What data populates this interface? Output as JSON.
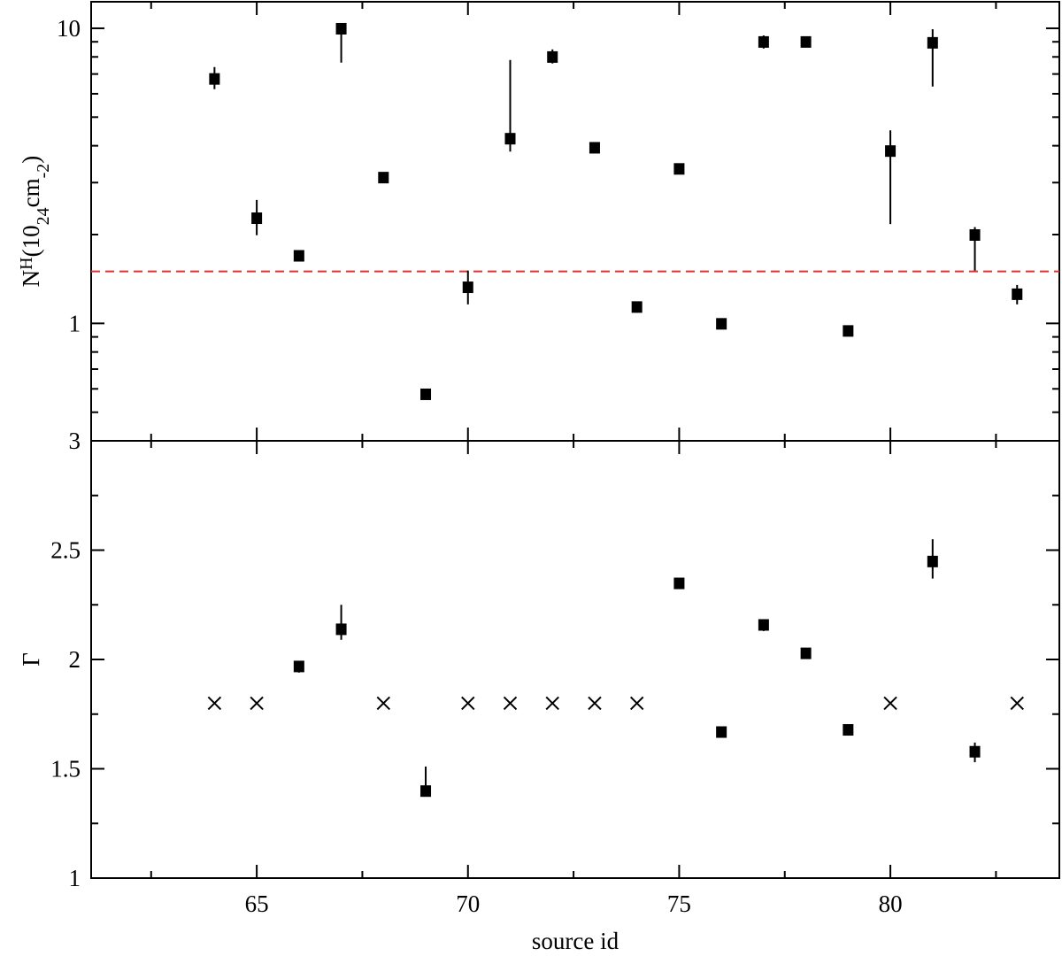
{
  "chart_data": [
    {
      "type": "scatter",
      "ylabel_parts": [
        "N",
        "H",
        "(10",
        "24",
        "cm",
        "-2",
        ")"
      ],
      "log_y": true,
      "ylim": [
        0.4,
        12.3
      ],
      "yticks": [
        1,
        10
      ],
      "yminor": [
        0.4,
        0.5,
        0.6,
        0.7,
        0.8,
        0.9,
        2,
        3,
        4,
        5,
        6,
        7,
        8,
        9
      ],
      "hline": 1.5,
      "hline_color": "#e03030",
      "series": [
        {
          "marker": "square",
          "color": "#000000",
          "x": [
            64,
            65,
            66,
            67,
            68,
            69,
            70,
            71,
            72,
            73,
            74,
            75,
            76,
            77,
            78,
            79,
            80,
            81,
            82,
            83
          ],
          "values": [
            6.76,
            2.28,
            1.7,
            10,
            3.13,
            0.577,
            1.33,
            4.24,
            8.02,
            3.95,
            1.14,
            3.35,
            1.0,
            9.02,
            9.02,
            0.946,
            3.85,
            8.96,
            2.0,
            1.26
          ],
          "err_low": [
            6.22,
            1.99,
            null,
            7.65,
            null,
            null,
            1.16,
            3.82,
            7.6,
            null,
            null,
            null,
            null,
            8.54,
            null,
            null,
            2.17,
            6.35,
            1.51,
            1.16
          ],
          "err_high": [
            7.39,
            2.62,
            null,
            null,
            null,
            null,
            1.51,
            7.81,
            8.48,
            null,
            null,
            null,
            null,
            9.46,
            null,
            null,
            4.51,
            9.93,
            2.12,
            1.35
          ]
        }
      ]
    },
    {
      "type": "scatter",
      "ylabel": "Γ",
      "xlabel": "source id",
      "xlim": [
        61.08,
        84.0
      ],
      "xticks": [
        65,
        70,
        75,
        80
      ],
      "xminor": [
        62.5,
        67.5,
        72.5,
        77.5,
        82.5
      ],
      "ylim": [
        1,
        3
      ],
      "yticks": [
        1,
        1.5,
        2,
        2.5,
        3
      ],
      "yminor": [
        1.25,
        1.75,
        2.25,
        2.75
      ],
      "series": [
        {
          "marker": "square",
          "color": "#000000",
          "x": [
            66,
            67,
            69,
            75,
            76,
            77,
            78,
            79,
            81,
            82
          ],
          "values": [
            1.97,
            2.14,
            1.4,
            2.35,
            1.67,
            2.16,
            2.03,
            1.68,
            2.45,
            1.58
          ],
          "err_low": [
            1.94,
            2.09,
            null,
            null,
            null,
            2.13,
            null,
            null,
            2.37,
            1.53
          ],
          "err_high": [
            null,
            2.25,
            1.51,
            null,
            null,
            2.18,
            null,
            null,
            2.55,
            1.62
          ]
        },
        {
          "marker": "cross",
          "color": "#000000",
          "x": [
            64,
            65,
            68,
            70,
            71,
            72,
            73,
            74,
            80,
            83
          ],
          "values": [
            1.8,
            1.8,
            1.8,
            1.8,
            1.8,
            1.8,
            1.8,
            1.8,
            1.8,
            1.8
          ]
        }
      ]
    }
  ]
}
